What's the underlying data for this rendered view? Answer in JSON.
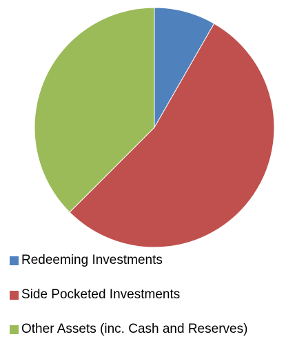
{
  "chart_data": {
    "type": "pie",
    "title": "",
    "slices": [
      {
        "label": "Redeeming Investments",
        "value": 8.3,
        "color": "#4F81BD"
      },
      {
        "label": "Side Pocketed Investments",
        "value": 54.2,
        "color": "#C0504D"
      },
      {
        "label": "Other Assets (inc. Cash and Reserves)",
        "value": 37.5,
        "color": "#9BBB59"
      }
    ],
    "legend_position": "bottom-left",
    "start_angle": "12 o'clock",
    "direction": "clockwise"
  }
}
